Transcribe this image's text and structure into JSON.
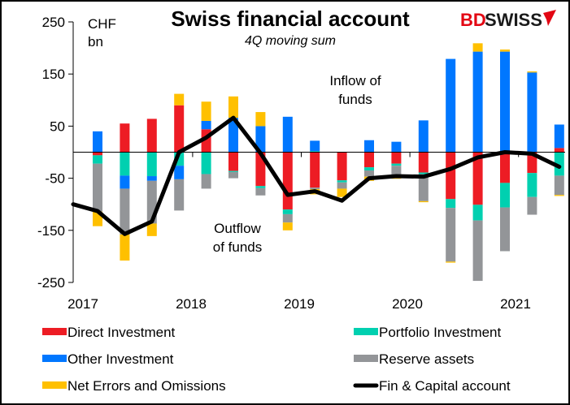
{
  "chart_data": {
    "type": "bar",
    "stacked": true,
    "title": "Swiss financial account",
    "subtitle": "4Q moving sum",
    "ylabel": "CHF bn",
    "ylim": [
      -250,
      250
    ],
    "yticks": [
      250,
      150,
      50,
      -50,
      -150,
      -250
    ],
    "xtick_labels": [
      "2017",
      "2018",
      "2019",
      "2020",
      "2021"
    ],
    "categories": [
      "Q1 2017",
      "Q2 2017",
      "Q3 2017",
      "Q4 2017",
      "Q1 2018",
      "Q2 2018",
      "Q3 2018",
      "Q4 2018",
      "Q1 2019",
      "Q2 2019",
      "Q3 2019",
      "Q4 2019",
      "Q1 2020",
      "Q2 2020",
      "Q3 2020",
      "Q4 2020",
      "Q1 2021",
      "Q2 2021"
    ],
    "series": [
      {
        "name": "Direct Investment",
        "color": "#ED1C24",
        "type": "bar",
        "values": [
          -6,
          55,
          64,
          90,
          44,
          -36,
          -65,
          -110,
          -68,
          -54,
          -29,
          -22,
          -39,
          -90,
          -101,
          -59,
          -40,
          8
        ]
      },
      {
        "name": "Portfolio Investment",
        "color": "#00D0B0",
        "type": "bar",
        "values": [
          -16,
          -45,
          -46,
          -26,
          -42,
          -2,
          -4,
          -9,
          2,
          -4,
          -6,
          -4,
          -3,
          -17,
          -30,
          -47,
          -46,
          -45
        ]
      },
      {
        "name": "Other Investment",
        "color": "#0077FF",
        "type": "bar",
        "values": [
          40,
          -25,
          -9,
          -26,
          16,
          66,
          50,
          68,
          20,
          0,
          23,
          20,
          61,
          179,
          193,
          193,
          153,
          45
        ]
      },
      {
        "name": "Reserve assets",
        "color": "#939598",
        "type": "bar",
        "values": [
          -92,
          -88,
          -82,
          -60,
          -28,
          -12,
          -14,
          -16,
          -3,
          -12,
          -12,
          -22,
          -52,
          -103,
          -116,
          -84,
          -34,
          -37
        ]
      },
      {
        "name": "Net Errors and Omissions",
        "color": "#FFC000",
        "type": "bar",
        "values": [
          -28,
          -50,
          -24,
          22,
          37,
          41,
          27,
          -15,
          -10,
          -16,
          -8,
          -3,
          -2,
          -2,
          16,
          4,
          2,
          -2
        ]
      },
      {
        "name": "Fin & Capital account",
        "color": "#000000",
        "type": "line",
        "x_start_value": -100,
        "values": [
          -113,
          -157,
          -133,
          0,
          28,
          66,
          -2,
          -82,
          -75,
          -93,
          -50,
          -46,
          -47,
          -32,
          -10,
          0,
          -3,
          -28
        ]
      }
    ],
    "annotations": [
      "Inflow of funds",
      "Outflow of funds"
    ],
    "legend_position": "bottom"
  },
  "labels": {
    "title": "Swiss financial account",
    "subtitle": "4Q moving sum",
    "unit_line1": "CHF",
    "unit_line2": "bn",
    "inflow_line1": "Inflow of",
    "inflow_line2": "funds",
    "outflow_line1": "Outflow",
    "outflow_line2": "of funds",
    "logo_bd": "BD",
    "logo_swiss": "SWISS"
  },
  "brand": {
    "red": "#E30613",
    "dark": "#1A1A1A"
  }
}
